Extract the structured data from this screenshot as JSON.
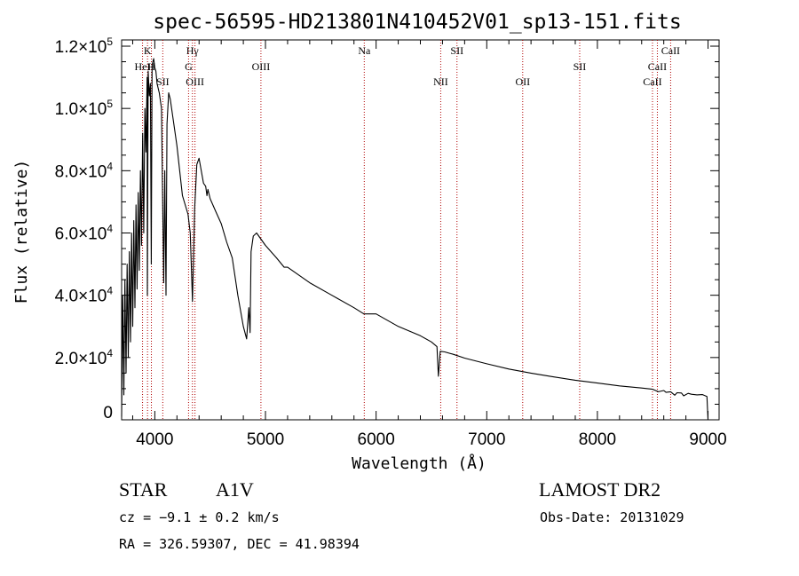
{
  "chart_data": {
    "type": "line",
    "title": "spec-56595-HD213801N410452V01_sp13-151.fits",
    "xlabel": "Wavelength (Å)",
    "ylabel": "Flux (relative)",
    "xlim": [
      3700,
      9100
    ],
    "ylim": [
      0,
      122000
    ],
    "xticks": [
      4000,
      5000,
      6000,
      7000,
      8000,
      9000
    ],
    "yticks": [
      {
        "value": 0,
        "mantissa": "0",
        "exponent": ""
      },
      {
        "value": 20000,
        "mantissa": "2.0×10",
        "exponent": "4"
      },
      {
        "value": 40000,
        "mantissa": "4.0×10",
        "exponent": "4"
      },
      {
        "value": 60000,
        "mantissa": "6.0×10",
        "exponent": "4"
      },
      {
        "value": 80000,
        "mantissa": "8.0×10",
        "exponent": "4"
      },
      {
        "value": 100000,
        "mantissa": "1.0×10",
        "exponent": "5"
      },
      {
        "value": 120000,
        "mantissa": "1.2×10",
        "exponent": "5"
      }
    ],
    "grid": false,
    "series": [
      {
        "color": "#000000",
        "x": [
          3700,
          3710,
          3720,
          3730,
          3740,
          3750,
          3760,
          3770,
          3780,
          3790,
          3800,
          3810,
          3820,
          3830,
          3840,
          3850,
          3860,
          3870,
          3880,
          3890,
          3900,
          3910,
          3920,
          3930,
          3933,
          3940,
          3950,
          3960,
          3968,
          3975,
          3990,
          4000,
          4010,
          4020,
          4040,
          4060,
          4080,
          4090,
          4101,
          4110,
          4125,
          4140,
          4160,
          4180,
          4200,
          4250,
          4300,
          4320,
          4340,
          4360,
          4380,
          4400,
          4420,
          4440,
          4460,
          4471,
          4480,
          4500,
          4550,
          4600,
          4650,
          4700,
          4750,
          4800,
          4830,
          4850,
          4861,
          4870,
          4890,
          4920,
          4960,
          5000,
          5100,
          5169,
          5200,
          5400,
          5600,
          5800,
          5890,
          6000,
          6200,
          6300,
          6400,
          6500,
          6550,
          6563,
          6580,
          6620,
          6700,
          6800,
          7000,
          7200,
          7400,
          7600,
          7800,
          8000,
          8200,
          8400,
          8500,
          8550,
          8600,
          8620,
          8662,
          8700,
          8720,
          8760,
          8780,
          8820,
          8850,
          8900,
          8950,
          8990,
          9000
        ],
        "y": [
          1000,
          40000,
          8000,
          45000,
          15000,
          50000,
          20000,
          54000,
          25000,
          60000,
          30000,
          64000,
          36000,
          69000,
          42000,
          73000,
          48000,
          80000,
          56000,
          92000,
          60000,
          100000,
          86000,
          110000,
          40000,
          112000,
          104000,
          108000,
          50000,
          114000,
          116000,
          113000,
          112000,
          108000,
          105000,
          100000,
          44000,
          80000,
          40000,
          95000,
          105000,
          103000,
          98000,
          93000,
          88000,
          72000,
          66000,
          60000,
          38000,
          68000,
          82000,
          84000,
          80000,
          76000,
          75000,
          72000,
          74000,
          71000,
          67000,
          63000,
          57000,
          52000,
          40000,
          30000,
          26000,
          36000,
          28000,
          54000,
          59000,
          60000,
          58000,
          56000,
          52000,
          49000,
          49000,
          44000,
          40000,
          36000,
          34000,
          34000,
          30000,
          28500,
          27000,
          25000,
          23500,
          14000,
          22000,
          21800,
          21000,
          19800,
          18000,
          16300,
          15000,
          13800,
          12700,
          11800,
          10900,
          10200,
          9800,
          9000,
          9400,
          8800,
          9000,
          7900,
          8700,
          8600,
          7700,
          8500,
          8200,
          8000,
          8100,
          7500,
          0
        ]
      }
    ],
    "annotations": [
      {
        "label": "K",
        "x": 3934,
        "row": 1
      },
      {
        "label": "H",
        "x": 3969,
        "row": 2
      },
      {
        "label": "HeI",
        "x": 3889,
        "row": 2
      },
      {
        "label": "SII",
        "x": 4072,
        "row": 3
      },
      {
        "label": "Hγ",
        "x": 4340,
        "row": 1
      },
      {
        "label": "G",
        "x": 4305,
        "row": 2
      },
      {
        "label": "OIII",
        "x": 4363,
        "row": 3
      },
      {
        "label": "OIII",
        "x": 4959,
        "row": 2
      },
      {
        "label": "Na",
        "x": 5893,
        "row": 1
      },
      {
        "label": "NII",
        "x": 6584,
        "row": 3
      },
      {
        "label": "SII",
        "x": 6731,
        "row": 1
      },
      {
        "label": "OII",
        "x": 7325,
        "row": 3
      },
      {
        "label": "SII",
        "x": 7840,
        "row": 2
      },
      {
        "label": "CaII",
        "x": 8498,
        "row": 3
      },
      {
        "label": "CaII",
        "x": 8542,
        "row": 2
      },
      {
        "label": "CaII",
        "x": 8662,
        "row": 1
      }
    ]
  },
  "info": {
    "object_class": "STAR",
    "subclass": "A1V",
    "survey": "LAMOST DR2",
    "cz": "cz = −9.1 ± 0.2 km/s",
    "obs_date": "Obs-Date: 20131029",
    "coords": "RA = 326.59307, DEC =  41.98394"
  }
}
